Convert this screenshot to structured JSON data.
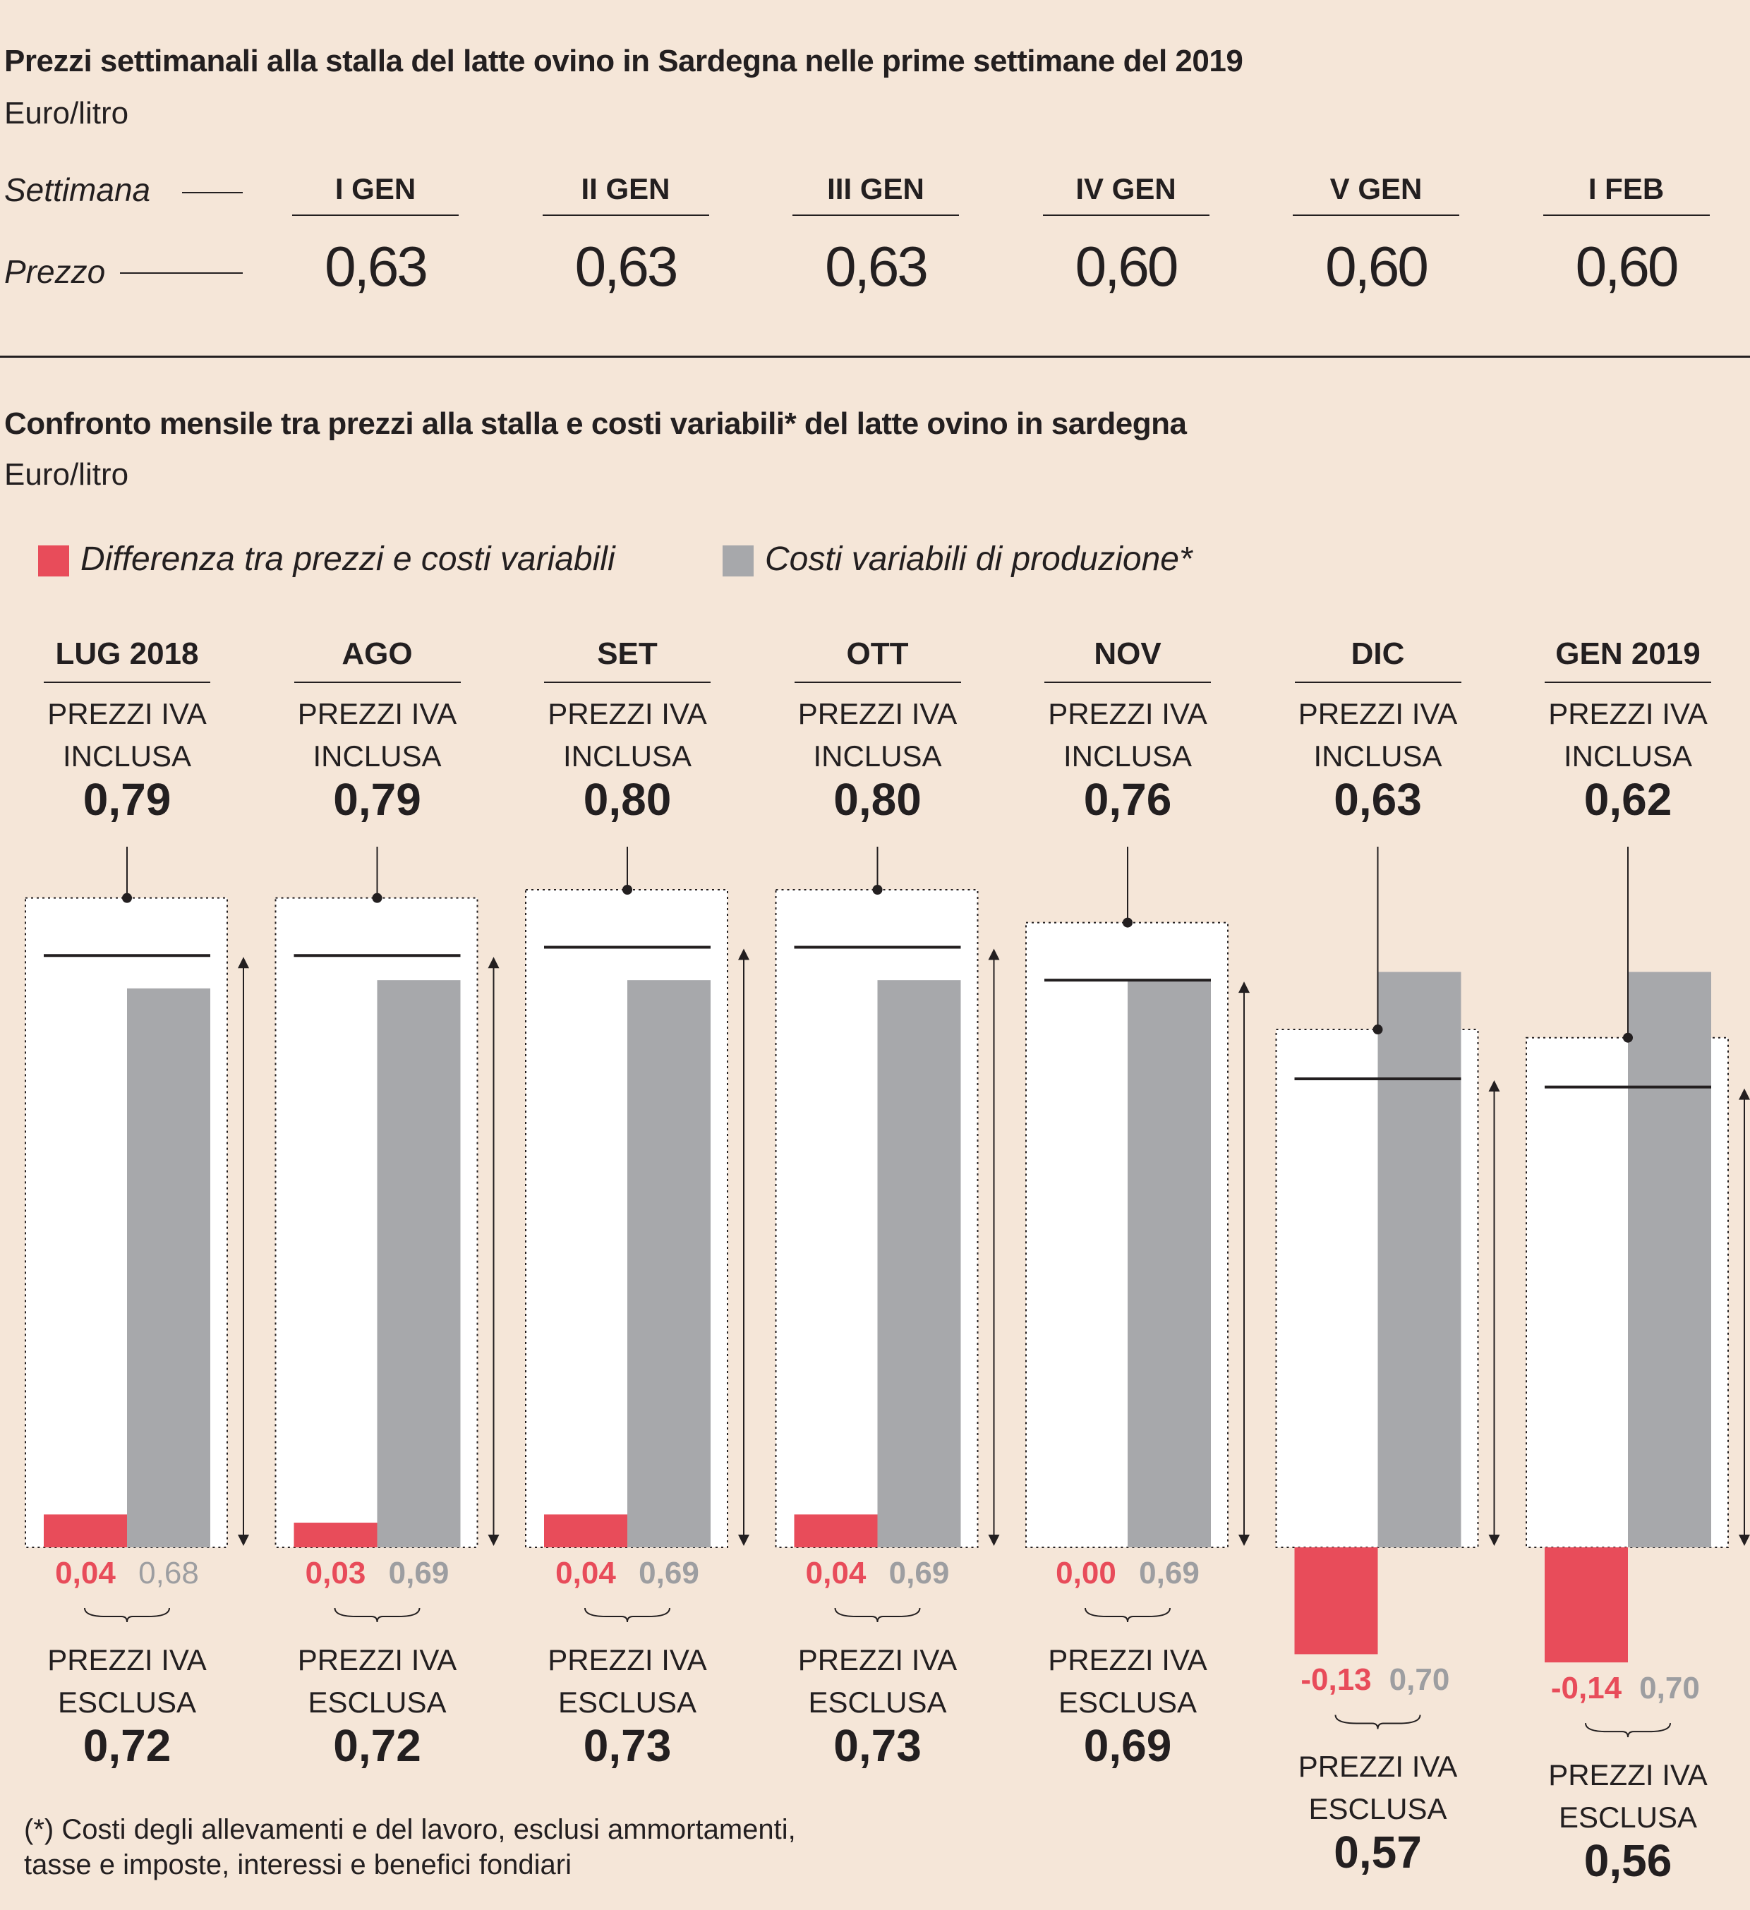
{
  "weekly": {
    "title": "Prezzi settimanali alla stalla del latte ovino in Sardegna nelle prime settimane del 2019",
    "unit": "Euro/litro",
    "row_label_week": "Settimana",
    "row_label_price": "Prezzo",
    "weeks": [
      {
        "label": "I GEN",
        "price": "0,63"
      },
      {
        "label": "II GEN",
        "price": "0,63"
      },
      {
        "label": "III GEN",
        "price": "0,63"
      },
      {
        "label": "IV GEN",
        "price": "0,60"
      },
      {
        "label": "V GEN",
        "price": "0,60"
      },
      {
        "label": "I FEB",
        "price": "0,60"
      }
    ]
  },
  "monthly": {
    "title": "Confronto mensile tra prezzi alla stalla e costi variabili* del latte ovino in sardegna",
    "unit": "Euro/litro",
    "legend": {
      "diff": "Differenza tra prezzi e costi variabili",
      "cost": "Costi variabili di produzione*"
    },
    "incl_caption_1": "PREZZI IVA",
    "incl_caption_2": "INCLUSA",
    "excl_caption_1": "PREZZI IVA",
    "excl_caption_2": "ESCLUSA",
    "footnote_1": "(*) Costi degli allevamenti e del lavoro, esclusi ammortamenti,",
    "footnote_2": "tasse e imposte, interessi e benefici fondiari",
    "colors": {
      "diff": "#e84c5a",
      "cost": "#a7a8ab",
      "background": "#f5e6d8"
    }
  },
  "chart_data": {
    "type": "bar",
    "categories": [
      "LUG 2018",
      "AGO",
      "SET",
      "OTT",
      "NOV",
      "DIC",
      "GEN 2019"
    ],
    "price_incl_vat": [
      0.79,
      0.79,
      0.8,
      0.8,
      0.76,
      0.63,
      0.62
    ],
    "price_excl_vat": [
      0.72,
      0.72,
      0.73,
      0.73,
      0.69,
      0.57,
      0.56
    ],
    "series": [
      {
        "name": "Differenza tra prezzi e costi variabili",
        "values": [
          0.04,
          0.03,
          0.04,
          0.04,
          0.0,
          -0.13,
          -0.14
        ]
      },
      {
        "name": "Costi variabili di produzione*",
        "values": [
          0.68,
          0.69,
          0.69,
          0.69,
          0.69,
          0.7,
          0.7
        ]
      }
    ],
    "diff_labels": [
      "0,04",
      "0,03",
      "0,04",
      "0,04",
      "0,00",
      "-0,13",
      "-0,14"
    ],
    "cost_labels": [
      "0,68",
      "0,69",
      "0,69",
      "0,69",
      "0,69",
      "0,70",
      "0,70"
    ],
    "price_incl_labels": [
      "0,79",
      "0,79",
      "0,80",
      "0,80",
      "0,76",
      "0,63",
      "0,62"
    ],
    "price_excl_labels": [
      "0,72",
      "0,72",
      "0,73",
      "0,73",
      "0,69",
      "0,57",
      "0,56"
    ],
    "unit": "Euro/litro"
  }
}
